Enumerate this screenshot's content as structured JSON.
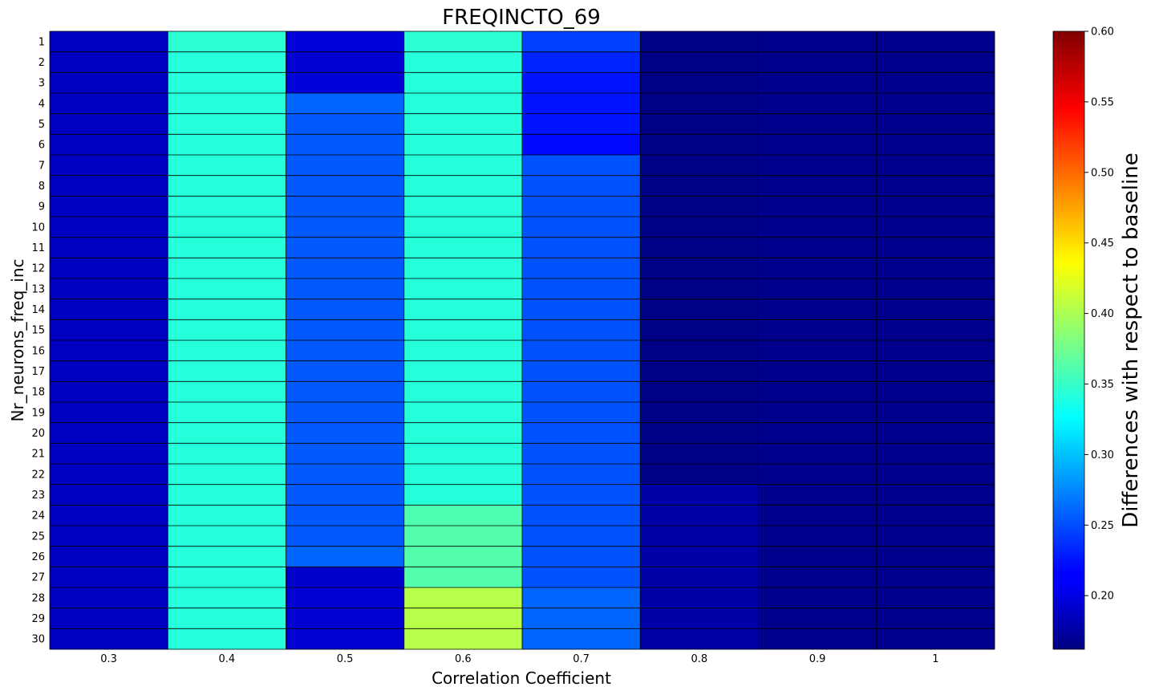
{
  "chart_data": {
    "type": "heatmap",
    "title": "FREQINCTO_69",
    "xlabel": "Correlation Coefficient",
    "ylabel": "Nr_neurons_freq_inc",
    "colorbar_label": "Differences with respect to baseline",
    "colormap": "jet",
    "vmin": 0.162,
    "vmax": 0.6,
    "colorbar_ticks": [
      "0.20",
      "0.25",
      "0.30",
      "0.35",
      "0.40",
      "0.45",
      "0.50",
      "0.55",
      "0.60"
    ],
    "x_categories": [
      "0.3",
      "0.4",
      "0.5",
      "0.6",
      "0.7",
      "0.8",
      "0.9",
      "1"
    ],
    "y_categories": [
      "1",
      "2",
      "3",
      "4",
      "5",
      "6",
      "7",
      "8",
      "9",
      "10",
      "11",
      "12",
      "13",
      "14",
      "15",
      "16",
      "17",
      "18",
      "19",
      "20",
      "21",
      "22",
      "23",
      "24",
      "25",
      "26",
      "27",
      "28",
      "29",
      "30"
    ],
    "values": [
      [
        0.19,
        0.345,
        0.2,
        0.345,
        0.245,
        0.165,
        0.168,
        0.168
      ],
      [
        0.19,
        0.342,
        0.198,
        0.342,
        0.232,
        0.165,
        0.168,
        0.168
      ],
      [
        0.19,
        0.342,
        0.2,
        0.342,
        0.225,
        0.165,
        0.168,
        0.168
      ],
      [
        0.19,
        0.342,
        0.26,
        0.342,
        0.225,
        0.165,
        0.168,
        0.168
      ],
      [
        0.19,
        0.342,
        0.255,
        0.342,
        0.225,
        0.165,
        0.168,
        0.168
      ],
      [
        0.19,
        0.342,
        0.255,
        0.342,
        0.22,
        0.165,
        0.168,
        0.168
      ],
      [
        0.19,
        0.342,
        0.255,
        0.342,
        0.252,
        0.165,
        0.168,
        0.168
      ],
      [
        0.19,
        0.342,
        0.255,
        0.342,
        0.252,
        0.165,
        0.168,
        0.168
      ],
      [
        0.19,
        0.342,
        0.255,
        0.342,
        0.252,
        0.165,
        0.168,
        0.168
      ],
      [
        0.19,
        0.342,
        0.255,
        0.342,
        0.252,
        0.165,
        0.168,
        0.168
      ],
      [
        0.19,
        0.342,
        0.255,
        0.342,
        0.252,
        0.165,
        0.168,
        0.168
      ],
      [
        0.19,
        0.342,
        0.255,
        0.342,
        0.252,
        0.165,
        0.168,
        0.168
      ],
      [
        0.19,
        0.342,
        0.255,
        0.342,
        0.252,
        0.165,
        0.168,
        0.168
      ],
      [
        0.19,
        0.342,
        0.255,
        0.342,
        0.252,
        0.165,
        0.168,
        0.168
      ],
      [
        0.19,
        0.342,
        0.255,
        0.342,
        0.252,
        0.165,
        0.168,
        0.168
      ],
      [
        0.19,
        0.342,
        0.255,
        0.342,
        0.252,
        0.165,
        0.168,
        0.168
      ],
      [
        0.19,
        0.342,
        0.255,
        0.342,
        0.252,
        0.165,
        0.168,
        0.168
      ],
      [
        0.19,
        0.342,
        0.255,
        0.342,
        0.252,
        0.165,
        0.168,
        0.168
      ],
      [
        0.19,
        0.342,
        0.255,
        0.342,
        0.252,
        0.165,
        0.168,
        0.168
      ],
      [
        0.19,
        0.342,
        0.255,
        0.342,
        0.252,
        0.165,
        0.168,
        0.168
      ],
      [
        0.19,
        0.342,
        0.255,
        0.342,
        0.252,
        0.165,
        0.168,
        0.168
      ],
      [
        0.19,
        0.342,
        0.255,
        0.342,
        0.252,
        0.165,
        0.168,
        0.168
      ],
      [
        0.19,
        0.342,
        0.255,
        0.342,
        0.252,
        0.18,
        0.168,
        0.168
      ],
      [
        0.19,
        0.342,
        0.255,
        0.36,
        0.252,
        0.18,
        0.168,
        0.168
      ],
      [
        0.19,
        0.342,
        0.255,
        0.362,
        0.252,
        0.18,
        0.168,
        0.168
      ],
      [
        0.19,
        0.342,
        0.26,
        0.362,
        0.252,
        0.18,
        0.168,
        0.168
      ],
      [
        0.19,
        0.342,
        0.195,
        0.362,
        0.252,
        0.18,
        0.168,
        0.168
      ],
      [
        0.19,
        0.342,
        0.198,
        0.405,
        0.26,
        0.18,
        0.168,
        0.168
      ],
      [
        0.19,
        0.342,
        0.198,
        0.405,
        0.26,
        0.18,
        0.168,
        0.168
      ],
      [
        0.19,
        0.342,
        0.198,
        0.405,
        0.26,
        0.18,
        0.168,
        0.168
      ]
    ]
  }
}
